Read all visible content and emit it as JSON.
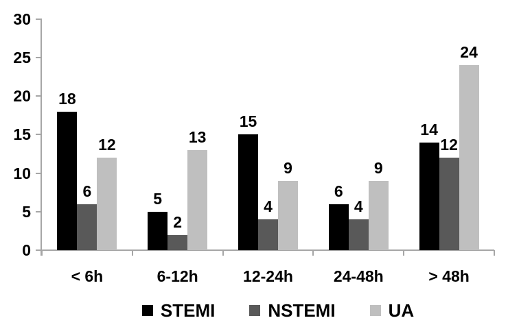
{
  "chart_data": {
    "type": "bar",
    "title": "",
    "xlabel": "",
    "ylabel": "",
    "categories": [
      "< 6h",
      "6-12h",
      "12-24h",
      "24-48h",
      "> 48h"
    ],
    "series": [
      {
        "name": "STEMI",
        "color": "#000000",
        "values": [
          18,
          5,
          15,
          6,
          14
        ]
      },
      {
        "name": "NSTEMI",
        "color": "#595959",
        "values": [
          6,
          2,
          4,
          4,
          12
        ]
      },
      {
        "name": "UA",
        "color": "#bfbfbf",
        "values": [
          12,
          13,
          9,
          9,
          24
        ]
      }
    ],
    "y_axis": {
      "min": 0,
      "max": 30,
      "tick_step": 5,
      "tick_labels": [
        "0",
        "5",
        "10",
        "15",
        "20",
        "25",
        "30"
      ]
    },
    "data_labels": true,
    "grid": false,
    "legend_position": "bottom",
    "axis_color": "#a6a6a6",
    "background_color": "#ffffff"
  }
}
